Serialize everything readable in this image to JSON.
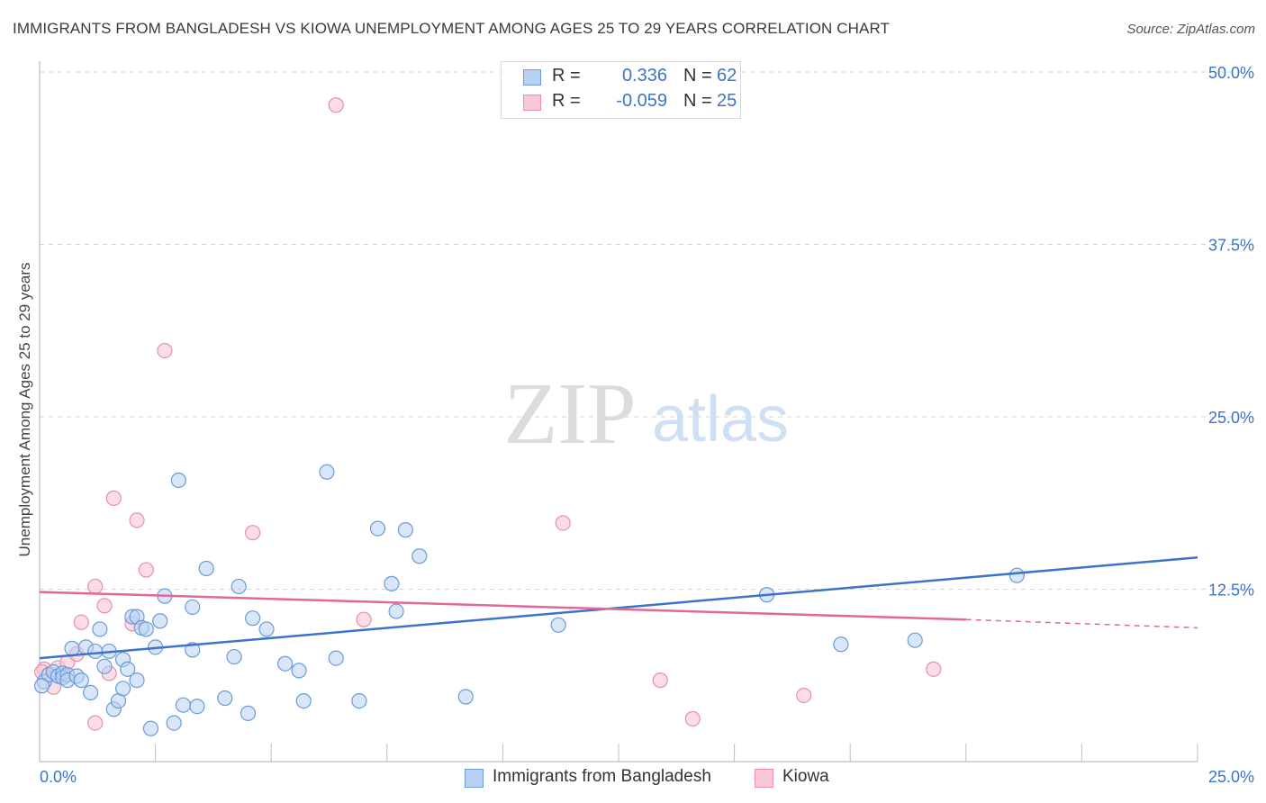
{
  "header": {
    "title": "IMMIGRANTS FROM BANGLADESH VS KIOWA UNEMPLOYMENT AMONG AGES 25 TO 29 YEARS CORRELATION CHART",
    "source": "Source: ZipAtlas.com"
  },
  "watermark": {
    "zip": "ZIP",
    "atlas": "atlas"
  },
  "stats_legend": {
    "rows": [
      {
        "r_label": "R =",
        "r_value": "0.336",
        "n_label": "N =",
        "n_value": "62"
      },
      {
        "r_label": "R =",
        "r_value": "-0.059",
        "n_label": "N =",
        "n_value": "25"
      }
    ]
  },
  "bottom_legend": {
    "items": [
      "Immigrants from Bangladesh",
      "Kiowa"
    ]
  },
  "colors": {
    "blue_fill": "#b8d1f3",
    "blue_stroke": "#6b9bd8",
    "blue_line": "#3d74c9",
    "pink_fill": "#f8c6d6",
    "pink_stroke": "#e78fad",
    "pink_line": "#e2689a",
    "grid": "#d5d5d5",
    "tick_label": "#3b74c9"
  },
  "chart_data": {
    "type": "scatter",
    "title": "IMMIGRANTS FROM BANGLADESH VS KIOWA UNEMPLOYMENT AMONG AGES 25 TO 29 YEARS CORRELATION CHART",
    "xlabel": "",
    "ylabel": "Unemployment Among Ages 25 to 29 years",
    "xlim": [
      0,
      25
    ],
    "ylim": [
      0,
      50
    ],
    "x_tick_labels": [
      "0.0%",
      "25.0%"
    ],
    "y_ticks": [
      12.5,
      25.0,
      37.5,
      50.0
    ],
    "y_tick_labels": [
      "12.5%",
      "25.0%",
      "37.5%",
      "50.0%"
    ],
    "grid": true,
    "legend_position": "top-center",
    "series": [
      {
        "name": "Immigrants from Bangladesh",
        "r": 0.336,
        "n": 62,
        "trend": {
          "x": [
            0,
            25
          ],
          "y": [
            7.5,
            14.8
          ]
        },
        "points": [
          [
            0.1,
            5.8
          ],
          [
            0.2,
            6.3
          ],
          [
            0.3,
            6.5
          ],
          [
            0.4,
            6.2
          ],
          [
            0.5,
            6.4
          ],
          [
            0.5,
            6.1
          ],
          [
            0.6,
            6.3
          ],
          [
            0.6,
            5.9
          ],
          [
            0.7,
            8.2
          ],
          [
            0.8,
            6.2
          ],
          [
            0.9,
            5.9
          ],
          [
            1.0,
            8.3
          ],
          [
            1.1,
            5.0
          ],
          [
            1.2,
            8.0
          ],
          [
            1.3,
            9.6
          ],
          [
            1.4,
            6.9
          ],
          [
            1.5,
            8.0
          ],
          [
            1.6,
            3.8
          ],
          [
            1.7,
            4.4
          ],
          [
            1.8,
            5.3
          ],
          [
            1.8,
            7.4
          ],
          [
            1.9,
            6.7
          ],
          [
            2.0,
            10.5
          ],
          [
            2.1,
            5.9
          ],
          [
            2.1,
            10.5
          ],
          [
            2.2,
            9.7
          ],
          [
            2.3,
            9.6
          ],
          [
            2.4,
            2.4
          ],
          [
            2.5,
            8.3
          ],
          [
            2.6,
            10.2
          ],
          [
            2.7,
            12.0
          ],
          [
            2.9,
            2.8
          ],
          [
            3.0,
            20.4
          ],
          [
            3.1,
            4.1
          ],
          [
            3.3,
            8.1
          ],
          [
            3.3,
            11.2
          ],
          [
            3.4,
            4.0
          ],
          [
            3.6,
            14.0
          ],
          [
            4.0,
            4.6
          ],
          [
            4.2,
            7.6
          ],
          [
            4.3,
            12.7
          ],
          [
            4.5,
            3.5
          ],
          [
            4.6,
            10.4
          ],
          [
            4.9,
            9.6
          ],
          [
            5.3,
            7.1
          ],
          [
            5.6,
            6.6
          ],
          [
            5.7,
            4.4
          ],
          [
            6.2,
            21.0
          ],
          [
            6.4,
            7.5
          ],
          [
            6.9,
            4.4
          ],
          [
            7.3,
            16.9
          ],
          [
            7.6,
            12.9
          ],
          [
            7.7,
            10.9
          ],
          [
            7.9,
            16.8
          ],
          [
            8.2,
            14.9
          ],
          [
            9.2,
            4.7
          ],
          [
            11.2,
            9.9
          ],
          [
            15.7,
            12.1
          ],
          [
            17.3,
            8.5
          ],
          [
            18.9,
            8.8
          ],
          [
            21.1,
            13.5
          ],
          [
            0.05,
            5.5
          ]
        ]
      },
      {
        "name": "Kiowa",
        "r": -0.059,
        "n": 25,
        "trend": {
          "x": [
            0,
            20
          ],
          "y": [
            12.3,
            10.3
          ],
          "dashed_extension": {
            "x": [
              20,
              25
            ],
            "y": [
              10.3,
              9.7
            ]
          }
        },
        "points": [
          [
            0.1,
            6.7
          ],
          [
            0.2,
            6.3
          ],
          [
            0.3,
            5.4
          ],
          [
            0.4,
            6.8
          ],
          [
            0.6,
            7.2
          ],
          [
            0.8,
            7.8
          ],
          [
            0.9,
            10.1
          ],
          [
            1.2,
            12.7
          ],
          [
            1.2,
            2.8
          ],
          [
            1.4,
            11.3
          ],
          [
            1.5,
            6.4
          ],
          [
            1.6,
            19.1
          ],
          [
            2.0,
            10.0
          ],
          [
            2.1,
            17.5
          ],
          [
            2.3,
            13.9
          ],
          [
            2.7,
            29.8
          ],
          [
            4.6,
            16.6
          ],
          [
            6.4,
            47.6
          ],
          [
            7.0,
            10.3
          ],
          [
            11.3,
            17.3
          ],
          [
            13.4,
            5.9
          ],
          [
            14.1,
            3.1
          ],
          [
            16.5,
            4.8
          ],
          [
            19.3,
            6.7
          ],
          [
            0.05,
            6.5
          ]
        ]
      }
    ]
  }
}
